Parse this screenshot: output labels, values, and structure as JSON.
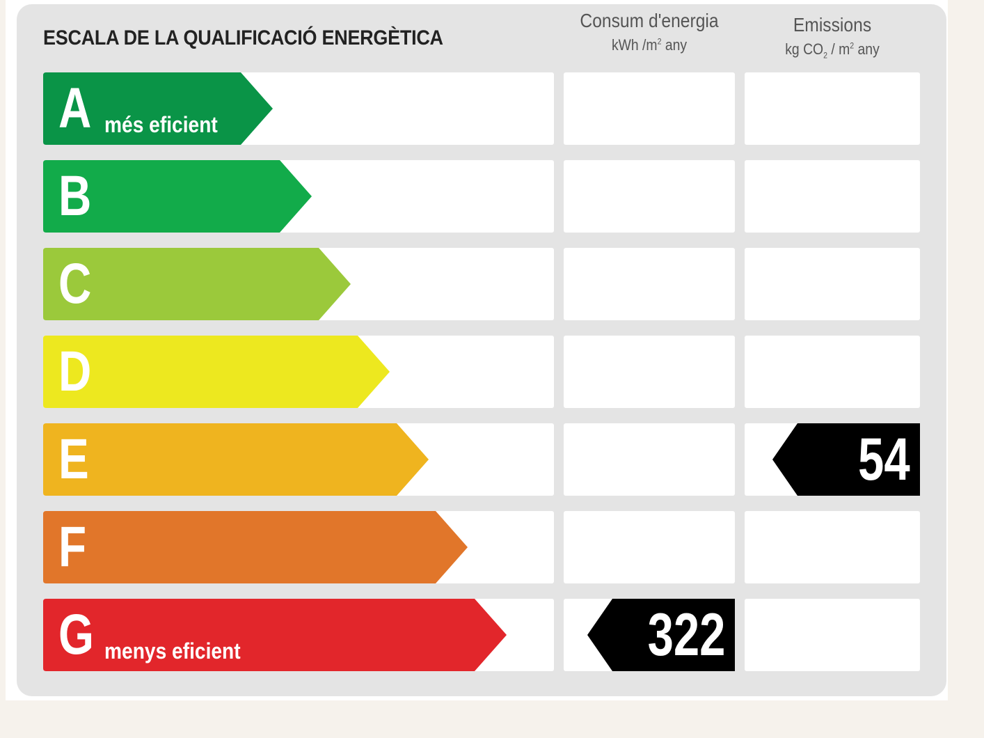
{
  "title": "ESCALA DE LA QUALIFICACIÓ ENERGÈTICA",
  "columns": {
    "consumption": {
      "title": "Consum d'energia",
      "unit_a": "kWh /m",
      "unit_sup": "2",
      "unit_b": " any"
    },
    "emissions": {
      "title": "Emissions",
      "unit_a": "kg CO",
      "unit_sub": "2",
      "unit_c": " / m",
      "unit_sup": "2",
      "unit_b": " any"
    }
  },
  "classes": [
    {
      "letter": "A",
      "label": "més eficient",
      "color": "#0a9447"
    },
    {
      "letter": "B",
      "label": "",
      "color": "#12ab4a"
    },
    {
      "letter": "C",
      "label": "",
      "color": "#9bc93b"
    },
    {
      "letter": "D",
      "label": "",
      "color": "#ede81f"
    },
    {
      "letter": "E",
      "label": "",
      "color": "#efb41f"
    },
    {
      "letter": "F",
      "label": "",
      "color": "#e1762a"
    },
    {
      "letter": "G",
      "label": "menys eficient",
      "color": "#e2262b"
    }
  ],
  "ratings": {
    "consumption": {
      "class": "G",
      "value": "322"
    },
    "emissions": {
      "class": "E",
      "value": "54"
    }
  },
  "badge_color": "#000000"
}
